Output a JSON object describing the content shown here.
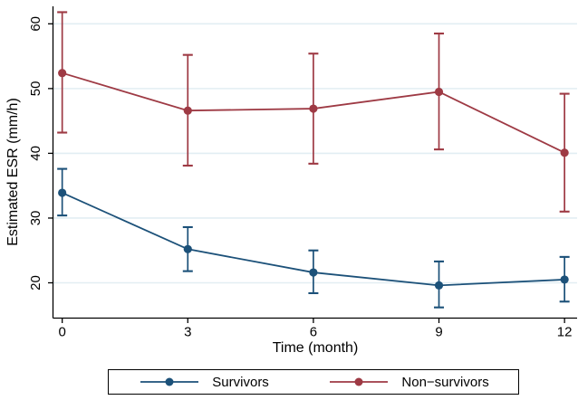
{
  "chart_data": {
    "type": "line",
    "title": "",
    "xlabel": "Time (month)",
    "ylabel": "Estimated ESR (mm/h)",
    "x": [
      0,
      3,
      6,
      9,
      12
    ],
    "xticks": [
      0,
      3,
      6,
      9,
      12
    ],
    "yticks": [
      20,
      30,
      40,
      50,
      60
    ],
    "xlim": [
      -0.22,
      12.3
    ],
    "ylim": [
      14.55,
      62.7
    ],
    "grid": true,
    "legend_position": "bottom",
    "error_bars": true,
    "series": [
      {
        "name": "Survivors",
        "color": "#1c5179",
        "values": [
          33.9,
          25.2,
          21.6,
          19.6,
          20.5
        ],
        "ci_low": [
          30.4,
          21.8,
          18.4,
          16.2,
          17.1
        ],
        "ci_high": [
          37.6,
          28.6,
          25.0,
          23.3,
          24.0
        ]
      },
      {
        "name": "Non−survivors",
        "color": "#9e3a44",
        "values": [
          52.4,
          46.6,
          46.9,
          49.5,
          40.1
        ],
        "ci_low": [
          43.2,
          38.1,
          38.4,
          40.6,
          31.0
        ],
        "ci_high": [
          61.8,
          55.2,
          55.4,
          58.5,
          49.2
        ]
      }
    ],
    "colors": {
      "gridline": "#e2eef3",
      "axis": "#000000",
      "text": "#000000",
      "background": "#ffffff"
    }
  }
}
